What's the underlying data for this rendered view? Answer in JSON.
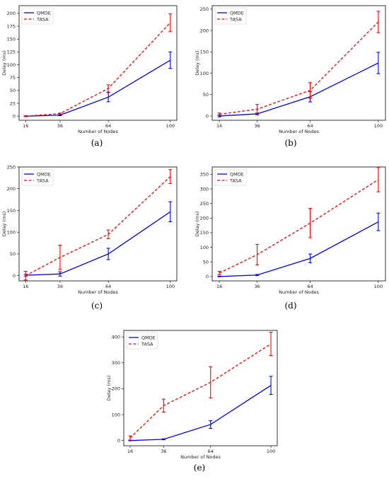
{
  "chart_data": [
    {
      "type": "line",
      "caption": "(a)",
      "xlabel": "Number of Nodes",
      "ylabel": "Delay (ms)",
      "categories": [
        "16",
        "36",
        "64",
        "100"
      ],
      "ylim": [
        -8,
        215
      ],
      "yticks": [
        0,
        25,
        50,
        75,
        100,
        125,
        150,
        175,
        200
      ],
      "legend": "top-left",
      "series": [
        {
          "name": "QMDE",
          "color": "#0000ff",
          "style": "solid",
          "values": [
            0,
            2,
            37,
            109
          ],
          "errors": [
            1,
            1,
            9,
            16
          ]
        },
        {
          "name": "TASA",
          "color": "#ff0000",
          "style": "dashed",
          "values": [
            0,
            5,
            54,
            182
          ],
          "errors": [
            1,
            1,
            7,
            17
          ]
        }
      ]
    },
    {
      "type": "line",
      "caption": "(b)",
      "xlabel": "Number of Nodes",
      "ylabel": "Delay (ms)",
      "categories": [
        "16",
        "36",
        "64",
        "100"
      ],
      "ylim": [
        -10,
        258
      ],
      "yticks": [
        0,
        50,
        100,
        150,
        200,
        250
      ],
      "legend": "top-left",
      "series": [
        {
          "name": "QMDE",
          "color": "#0000ff",
          "style": "solid",
          "values": [
            0,
            5,
            45,
            124
          ],
          "errors": [
            2,
            2,
            12,
            25
          ]
        },
        {
          "name": "TASA",
          "color": "#ff0000",
          "style": "dashed",
          "values": [
            4,
            16,
            60,
            220
          ],
          "errors": [
            3,
            11,
            18,
            25
          ]
        }
      ]
    },
    {
      "type": "line",
      "caption": "(c)",
      "xlabel": "Number of Nodes",
      "ylabel": "Delay (ms)",
      "categories": [
        "16",
        "36",
        "64",
        "100"
      ],
      "ylim": [
        -12,
        250
      ],
      "yticks": [
        0,
        50,
        100,
        150,
        200,
        250
      ],
      "legend": "top-left",
      "series": [
        {
          "name": "QMDE",
          "color": "#0000ff",
          "style": "solid",
          "values": [
            1,
            4,
            50,
            147
          ],
          "errors": [
            2,
            5,
            13,
            23
          ]
        },
        {
          "name": "TASA",
          "color": "#ff0000",
          "style": "dashed",
          "values": [
            0,
            42,
            95,
            228
          ],
          "errors": [
            10,
            28,
            10,
            16
          ]
        }
      ]
    },
    {
      "type": "line",
      "caption": "(d)",
      "xlabel": "Number of Nodes",
      "ylabel": "Delay (ms)",
      "categories": [
        "16",
        "36",
        "64",
        "100"
      ],
      "ylim": [
        -15,
        375
      ],
      "yticks": [
        0,
        50,
        100,
        150,
        200,
        250,
        300,
        350
      ],
      "legend": "top-left",
      "series": [
        {
          "name": "QMDE",
          "color": "#0000ff",
          "style": "solid",
          "values": [
            0,
            5,
            62,
            187
          ],
          "errors": [
            1,
            2,
            15,
            30
          ]
        },
        {
          "name": "TASA",
          "color": "#ff0000",
          "style": "dashed",
          "values": [
            12,
            75,
            183,
            332
          ],
          "errors": [
            6,
            35,
            50,
            42
          ]
        }
      ]
    },
    {
      "type": "line",
      "caption": "(e)",
      "xlabel": "Number of Nodes",
      "ylabel": "Delay (ms)",
      "categories": [
        "16",
        "36",
        "64",
        "100"
      ],
      "ylim": [
        -20,
        425
      ],
      "yticks": [
        0,
        100,
        200,
        300,
        400
      ],
      "legend": "top-left",
      "series": [
        {
          "name": "QMDE",
          "color": "#0000ff",
          "style": "solid",
          "values": [
            0,
            5,
            62,
            213
          ],
          "errors": [
            1,
            2,
            15,
            35
          ]
        },
        {
          "name": "TASA",
          "color": "#ff0000",
          "style": "dashed",
          "values": [
            10,
            135,
            225,
            373
          ],
          "errors": [
            8,
            25,
            60,
            45
          ]
        }
      ]
    }
  ]
}
